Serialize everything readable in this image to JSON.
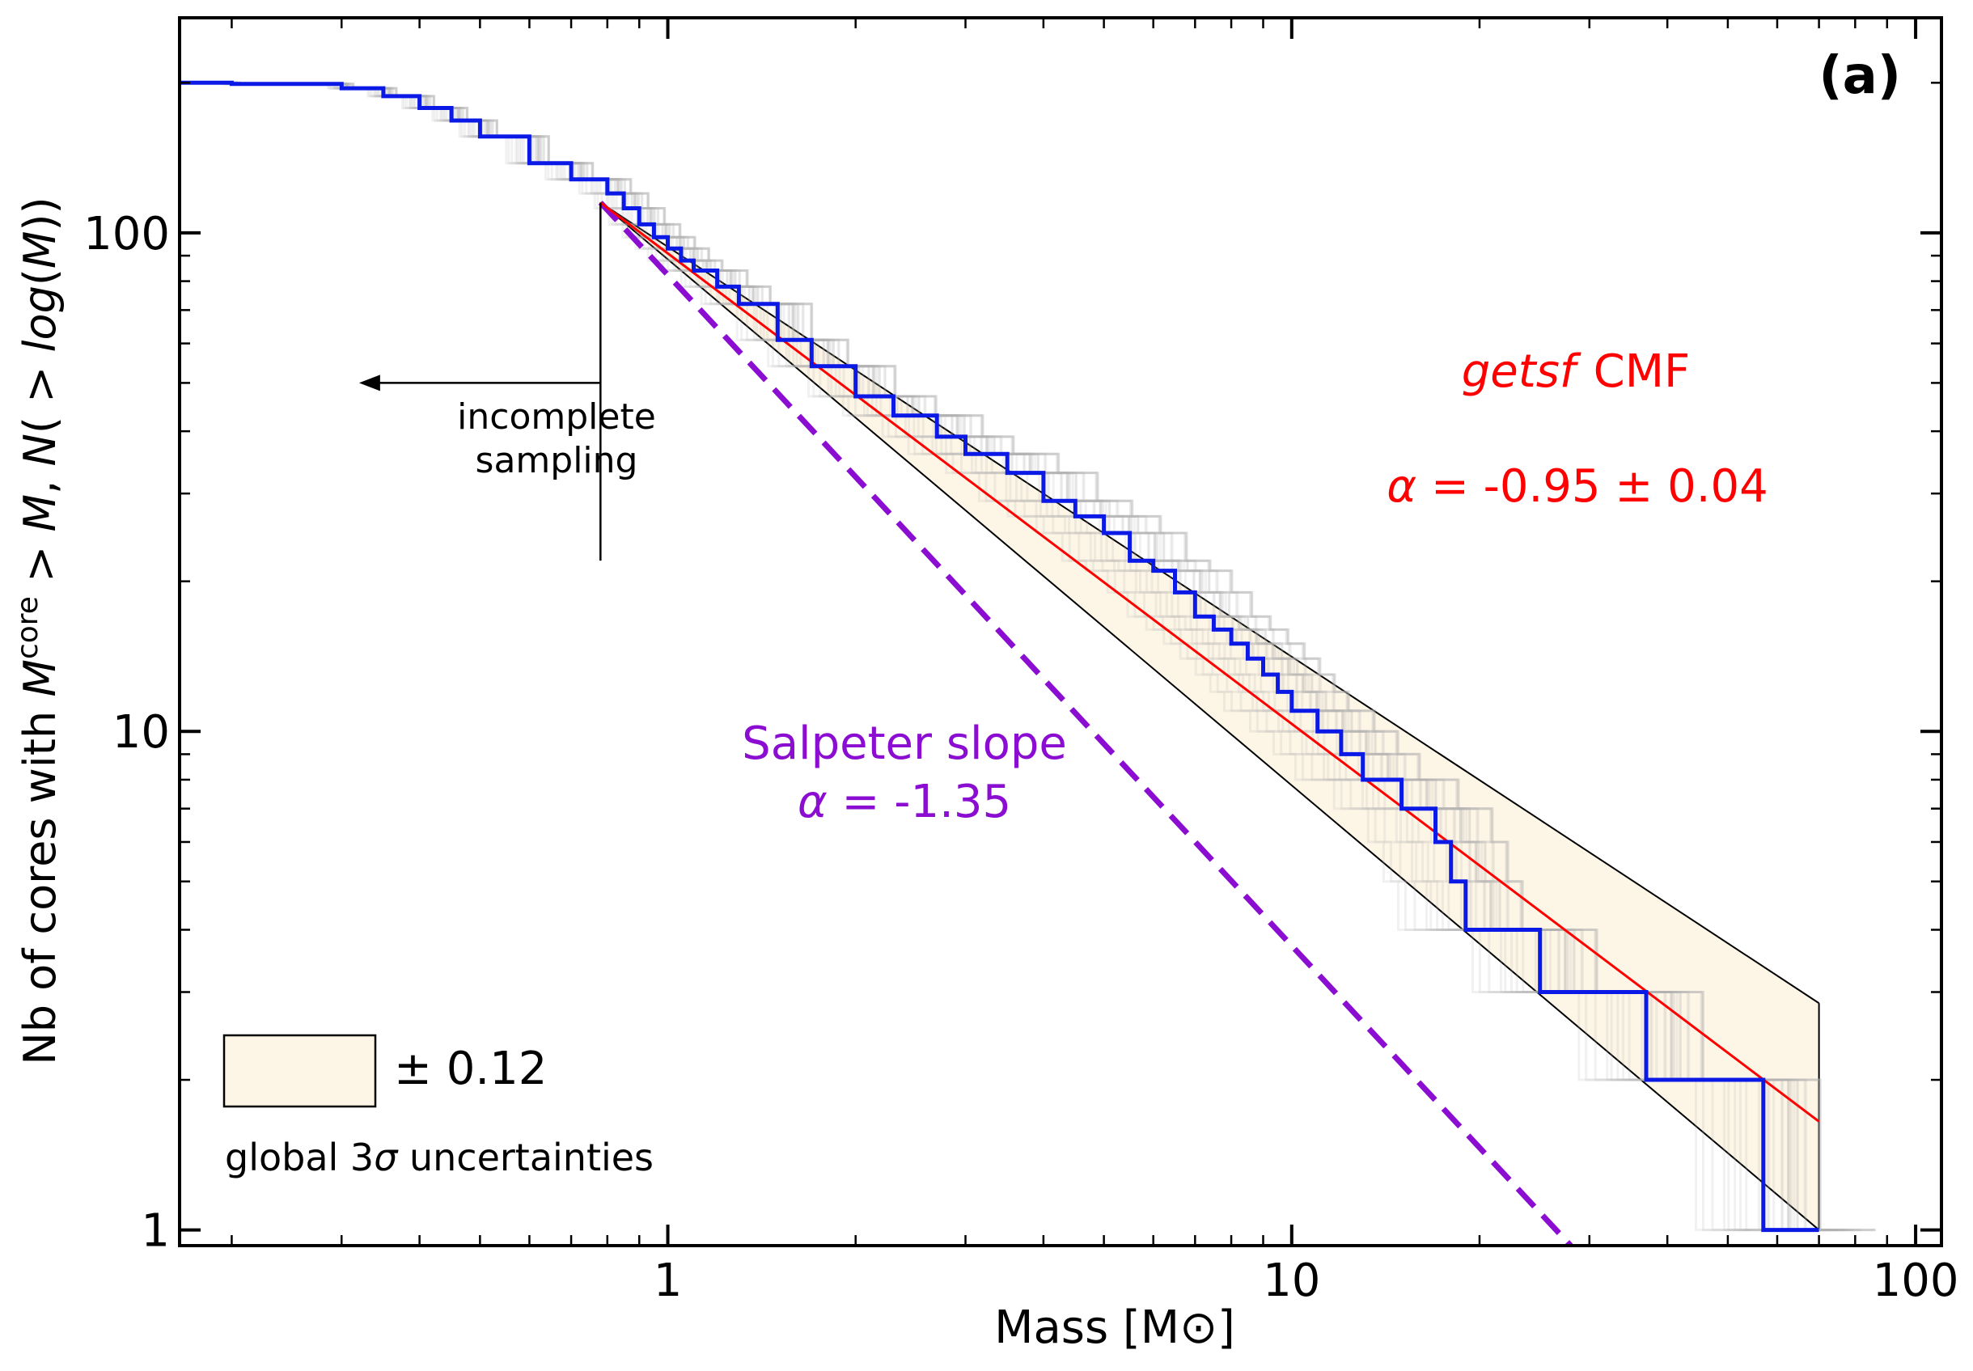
{
  "chart_data": {
    "type": "line",
    "panel_label": "(a)",
    "xlabel": "Mass [M⊙]",
    "ylabel_parts": [
      "Nb of cores with ",
      "M",
      "core",
      " > ",
      "M",
      ", ",
      "N",
      "( > ",
      "log",
      "(",
      "M",
      "))"
    ],
    "x_scale": "log",
    "y_scale": "log",
    "xlim": [
      0.165,
      110
    ],
    "ylim": [
      0.93,
      270
    ],
    "x_ticks": [
      1,
      10,
      100
    ],
    "x_tick_labels": [
      "1",
      "10",
      "100"
    ],
    "y_ticks": [
      1,
      10,
      100
    ],
    "y_tick_labels": [
      "1",
      "10",
      "100"
    ],
    "grid": false,
    "series": [
      {
        "name": "getsf CMF",
        "kind": "step",
        "color": "#0a19e6",
        "x": [
          0.165,
          0.2,
          0.3,
          0.35,
          0.4,
          0.45,
          0.5,
          0.6,
          0.7,
          0.8,
          0.85,
          0.9,
          0.95,
          1.0,
          1.05,
          1.1,
          1.2,
          1.3,
          1.5,
          1.7,
          2.0,
          2.3,
          2.7,
          3.0,
          3.5,
          4.0,
          4.5,
          5.0,
          5.5,
          6.0,
          6.5,
          7.0,
          7.5,
          8.0,
          8.5,
          9.0,
          9.5,
          10.0,
          11.0,
          12.0,
          13.0,
          15.0,
          17.0,
          18.0,
          19.0,
          25.0,
          37.0,
          57.0,
          70.0
        ],
        "y": [
          200,
          199,
          195,
          188,
          178,
          168,
          156,
          138,
          128,
          120,
          112,
          104,
          98,
          93,
          88,
          84,
          78,
          72,
          61,
          54,
          47,
          43,
          39,
          36,
          33,
          29,
          27,
          25,
          22,
          21,
          19,
          17,
          16,
          15,
          14,
          13,
          12,
          11,
          10,
          9,
          8,
          7,
          6,
          5,
          4,
          3,
          2,
          1,
          1
        ]
      },
      {
        "name": "fit",
        "kind": "line",
        "color": "#ff0000",
        "x": [
          0.78,
          70
        ],
        "y": [
          115,
          1.65
        ]
      },
      {
        "name": "Salpeter slope",
        "kind": "dashed-line",
        "color": "#8a0dd1",
        "x": [
          0.78,
          28
        ],
        "y": [
          115,
          0.93
        ]
      },
      {
        "name": "uncertainty band",
        "kind": "band",
        "color": "#fdf5e6",
        "x": [
          0.78,
          70
        ],
        "upper": [
          115,
          2.85
        ],
        "lower": [
          115,
          1.0
        ]
      }
    ],
    "bootstrap_curves": {
      "count": 30,
      "color": "#b4b4b4",
      "spread_dex": 0.12
    },
    "completeness_limit": {
      "x": 0.78,
      "y_range": [
        22,
        115
      ],
      "arrow_y": 50,
      "arrow_to_x": 0.32
    }
  },
  "annotations": {
    "panel_label": "(a)",
    "incomplete_line1": "incomplete",
    "incomplete_line2": "sampling",
    "cmf_name": "getsf",
    "cmf_suffix": "CMF",
    "alpha_fit_symbol": "α",
    "alpha_fit_value": " = -0.95 ± 0.04",
    "salpeter_line1": "Salpeter slope",
    "salpeter_symbol": "α",
    "salpeter_value": " = -1.35",
    "legend_band_label": "± 0.12",
    "legend_caption_pre": "global 3",
    "legend_caption_sigma": "σ",
    "legend_caption_post": " uncertainties"
  },
  "colors": {
    "band_fill": "#fdf5e6",
    "fit": "#ff0000",
    "cmf": "#0a19e6",
    "salpeter": "#8a0dd1",
    "bootstrap": "#b4b4b4"
  }
}
